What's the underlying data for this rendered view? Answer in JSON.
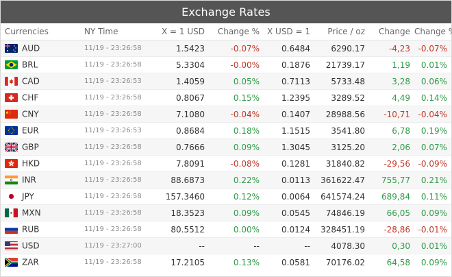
{
  "title": "Exchange Rates",
  "headers": {
    "currencies": "Currencies",
    "ny_time": "NY Time",
    "x_eq_1_usd": "X = 1 USD",
    "change_pct": "Change %",
    "usd_eq_1": "X USD = 1",
    "price_oz": "Price / oz",
    "change": "Change",
    "change_pct2": "Change %"
  },
  "colors": {
    "header_bg": "#555555",
    "positive": "#2e9c46",
    "negative": "#c0392b"
  },
  "rows": [
    {
      "code": "AUD",
      "flag": "australia-flag-icon",
      "time": "11/19 - 23:26:58",
      "rate": "1.5423",
      "chg_pct": "-0.07%",
      "chg_pct_dir": "neg",
      "inverse": "0.6484",
      "price_oz": "6290.17",
      "change": "-4,23",
      "change_dir": "neg",
      "change_pct2": "-0.07%",
      "change_pct2_dir": "neg"
    },
    {
      "code": "BRL",
      "flag": "brazil-flag-icon",
      "time": "11/19 - 23:26:58",
      "rate": "5.3304",
      "chg_pct": "-0.00%",
      "chg_pct_dir": "neg",
      "inverse": "0.1876",
      "price_oz": "21739.17",
      "change": "1,19",
      "change_dir": "pos",
      "change_pct2": "0.01%",
      "change_pct2_dir": "pos"
    },
    {
      "code": "CAD",
      "flag": "canada-flag-icon",
      "time": "11/19 - 23:26:53",
      "rate": "1.4059",
      "chg_pct": "0.05%",
      "chg_pct_dir": "pos",
      "inverse": "0.7113",
      "price_oz": "5733.48",
      "change": "3,28",
      "change_dir": "pos",
      "change_pct2": "0.06%",
      "change_pct2_dir": "pos"
    },
    {
      "code": "CHF",
      "flag": "switzerland-flag-icon",
      "time": "11/19 - 23:26:58",
      "rate": "0.8067",
      "chg_pct": "0.15%",
      "chg_pct_dir": "pos",
      "inverse": "1.2395",
      "price_oz": "3289.52",
      "change": "4,49",
      "change_dir": "pos",
      "change_pct2": "0.14%",
      "change_pct2_dir": "pos"
    },
    {
      "code": "CNY",
      "flag": "china-flag-icon",
      "time": "11/19 - 23:26:58",
      "rate": "7.1080",
      "chg_pct": "-0.04%",
      "chg_pct_dir": "neg",
      "inverse": "0.1407",
      "price_oz": "28988.56",
      "change": "-10,71",
      "change_dir": "neg",
      "change_pct2": "-0.04%",
      "change_pct2_dir": "neg"
    },
    {
      "code": "EUR",
      "flag": "eu-flag-icon",
      "time": "11/19 - 23:26:53",
      "rate": "0.8684",
      "chg_pct": "0.18%",
      "chg_pct_dir": "pos",
      "inverse": "1.1515",
      "price_oz": "3541.80",
      "change": "6,78",
      "change_dir": "pos",
      "change_pct2": "0.19%",
      "change_pct2_dir": "pos"
    },
    {
      "code": "GBP",
      "flag": "uk-flag-icon",
      "time": "11/19 - 23:26:58",
      "rate": "0.7666",
      "chg_pct": "0.09%",
      "chg_pct_dir": "pos",
      "inverse": "1.3045",
      "price_oz": "3125.20",
      "change": "2,06",
      "change_dir": "pos",
      "change_pct2": "0.07%",
      "change_pct2_dir": "pos"
    },
    {
      "code": "HKD",
      "flag": "hong-kong-flag-icon",
      "time": "11/19 - 23:26:58",
      "rate": "7.8091",
      "chg_pct": "-0.08%",
      "chg_pct_dir": "neg",
      "inverse": "0.1281",
      "price_oz": "31840.82",
      "change": "-29,56",
      "change_dir": "neg",
      "change_pct2": "-0.09%",
      "change_pct2_dir": "neg"
    },
    {
      "code": "INR",
      "flag": "india-flag-icon",
      "time": "11/19 - 23:26:58",
      "rate": "88.6873",
      "chg_pct": "0.22%",
      "chg_pct_dir": "pos",
      "inverse": "0.0113",
      "price_oz": "361622.47",
      "change": "755,77",
      "change_dir": "pos",
      "change_pct2": "0.21%",
      "change_pct2_dir": "pos"
    },
    {
      "code": "JPY",
      "flag": "japan-flag-icon",
      "time": "11/19 - 23:26:58",
      "rate": "157.3460",
      "chg_pct": "0.12%",
      "chg_pct_dir": "pos",
      "inverse": "0.0064",
      "price_oz": "641574.24",
      "change": "689,84",
      "change_dir": "pos",
      "change_pct2": "0.11%",
      "change_pct2_dir": "pos"
    },
    {
      "code": "MXN",
      "flag": "mexico-flag-icon",
      "time": "11/19 - 23:26:58",
      "rate": "18.3523",
      "chg_pct": "0.09%",
      "chg_pct_dir": "pos",
      "inverse": "0.0545",
      "price_oz": "74846.19",
      "change": "66,05",
      "change_dir": "pos",
      "change_pct2": "0.09%",
      "change_pct2_dir": "pos"
    },
    {
      "code": "RUB",
      "flag": "russia-flag-icon",
      "time": "11/19 - 23:26:58",
      "rate": "80.5512",
      "chg_pct": "0.00%",
      "chg_pct_dir": "pos",
      "inverse": "0.0124",
      "price_oz": "328451.19",
      "change": "-28,86",
      "change_dir": "neg",
      "change_pct2": "-0.01%",
      "change_pct2_dir": "neg"
    },
    {
      "code": "USD",
      "flag": "usa-flag-icon",
      "time": "11/19 - 23:27:00",
      "rate": "--",
      "chg_pct": "--",
      "chg_pct_dir": "neutral",
      "inverse": "--",
      "price_oz": "4078.30",
      "change": "0,30",
      "change_dir": "pos",
      "change_pct2": "0.01%",
      "change_pct2_dir": "pos"
    },
    {
      "code": "ZAR",
      "flag": "south-africa-flag-icon",
      "time": "11/19 - 23:26:58",
      "rate": "17.2105",
      "chg_pct": "0.13%",
      "chg_pct_dir": "pos",
      "inverse": "0.0581",
      "price_oz": "70176.02",
      "change": "64,58",
      "change_dir": "pos",
      "change_pct2": "0.09%",
      "change_pct2_dir": "pos"
    }
  ]
}
